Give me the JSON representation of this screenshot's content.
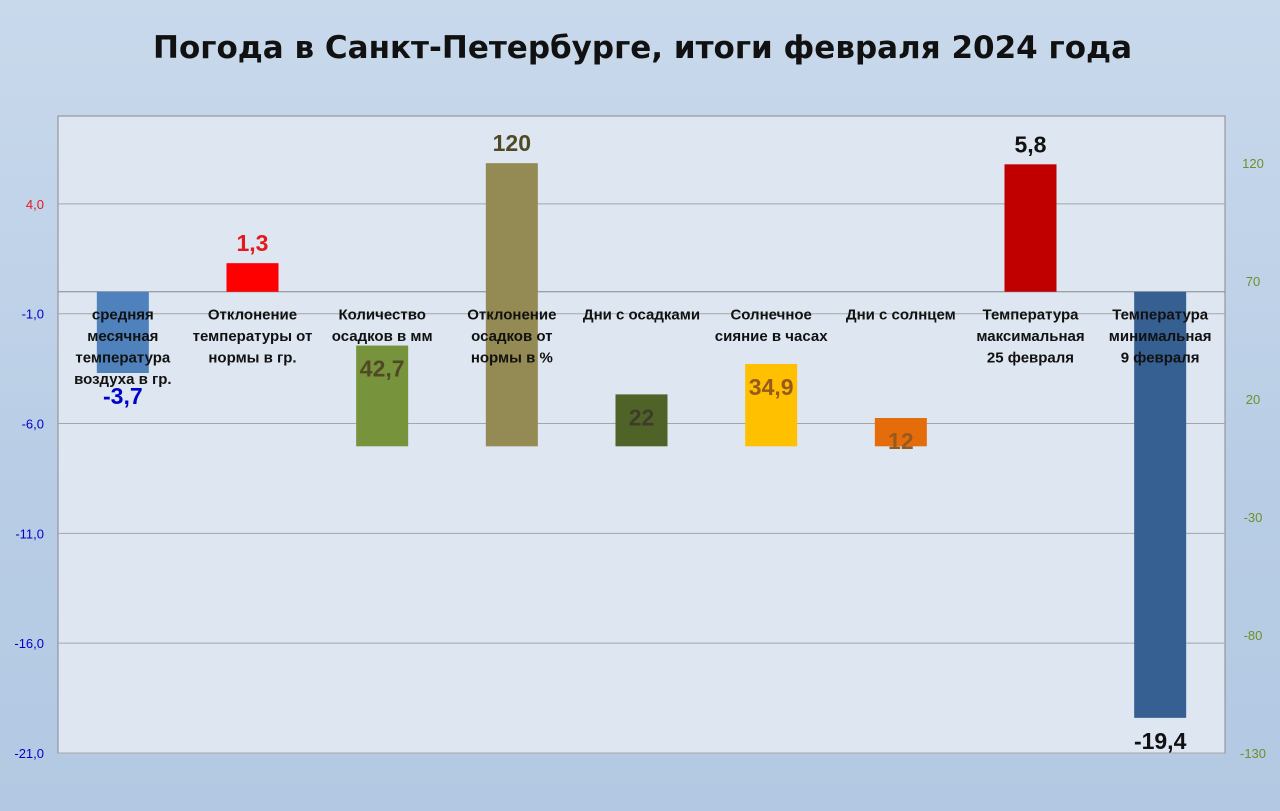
{
  "chart_data": {
    "type": "bar",
    "title": "Погода в Санкт-Петербурге, итоги февраля 2024 года",
    "categories": [
      [
        "средняя",
        "месячная",
        "температура",
        "воздуха в гр."
      ],
      [
        "Отклонение",
        "температуры от",
        "нормы в гр."
      ],
      [
        "Количество",
        "осадков в мм"
      ],
      [
        "Отклонение",
        "осадков от",
        "нормы в %"
      ],
      [
        "Дни с осадками"
      ],
      [
        "Солнечное",
        "сияние в часах"
      ],
      [
        "Дни с солнцем"
      ],
      [
        "Температура",
        "максимальная",
        "25 февраля"
      ],
      [
        "Температура",
        "минимальная",
        "9 февраля"
      ]
    ],
    "values": [
      -3.7,
      1.3,
      42.7,
      120,
      22,
      34.9,
      12,
      5.8,
      -19.4
    ],
    "value_labels": [
      "-3,7",
      "1,3",
      "42,7",
      "120",
      "22",
      "34,9",
      "12",
      "5,8",
      "-19,4"
    ],
    "axis": [
      "left",
      "left",
      "right",
      "right",
      "right",
      "right",
      "right",
      "left",
      "left"
    ],
    "bar_colors": [
      "#4f81bd",
      "#ff0000",
      "#77933c",
      "#948a54",
      "#4f6228",
      "#ffc000",
      "#e46c0a",
      "#c00000",
      "#366092"
    ],
    "label_colors": [
      "#0000cc",
      "#e31a1c",
      "#4f4a26",
      "#4f4a26",
      "#3d3d2a",
      "#985a1c",
      "#985a1c",
      "#111111",
      "#111111"
    ],
    "left_axis": {
      "ylim": [
        -21,
        8
      ],
      "ticks": [
        4,
        -1,
        -6,
        -11,
        -16,
        -21
      ],
      "tick_labels": [
        "4,0",
        "-1,0",
        "-6,0",
        "-11,0",
        "-16,0",
        "-21,0"
      ],
      "color": "#0000cc",
      "top_tick_color": "#e31a1c"
    },
    "right_axis": {
      "ylim": [
        -130,
        140
      ],
      "ticks": [
        120,
        70,
        20,
        -30,
        -80,
        -130
      ],
      "tick_labels": [
        "120",
        "70",
        "20",
        "-30",
        "-80",
        "-130"
      ],
      "color": "#6f8f2a"
    },
    "grid": true,
    "legend": "none"
  }
}
